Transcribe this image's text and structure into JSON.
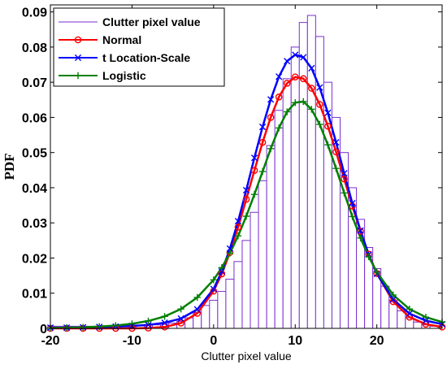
{
  "chart_data": {
    "type": "line",
    "xlabel": "Clutter pixel value",
    "ylabel": "PDF",
    "xlim": [
      -20,
      28
    ],
    "ylim": [
      0,
      0.092
    ],
    "x_ticks": [
      -20,
      -10,
      0,
      10,
      20
    ],
    "y_ticks": [
      0,
      0.01,
      0.02,
      0.03,
      0.04,
      0.05,
      0.06,
      0.07,
      0.08,
      0.09
    ],
    "grid": false,
    "legend_position": "top-left",
    "legend": [
      "Clutter pixel value",
      "Normal",
      "t Location-Scale",
      "Logistic"
    ],
    "histogram": {
      "name": "Clutter pixel value",
      "color": "#7a2fd0",
      "bin_width": 1,
      "bin_centers": [
        -20,
        -19,
        -18,
        -17,
        -16,
        -15,
        -14,
        -13,
        -12,
        -11,
        -10,
        -9,
        -8,
        -7,
        -6,
        -5,
        -4,
        -3,
        -2,
        -1,
        0,
        1,
        2,
        3,
        4,
        5,
        6,
        7,
        8,
        9,
        10,
        11,
        12,
        13,
        14,
        15,
        16,
        17,
        18,
        19,
        20,
        21,
        22,
        23,
        24,
        25,
        26,
        27
      ],
      "values": [
        0.0006,
        0.0006,
        0.0006,
        0.0006,
        0.0006,
        0.0006,
        0.0006,
        0.0006,
        0.0006,
        0.0007,
        0.0007,
        0.0008,
        0.0009,
        0.001,
        0.0012,
        0.0015,
        0.002,
        0.003,
        0.0045,
        0.0065,
        0.008,
        0.0105,
        0.014,
        0.019,
        0.025,
        0.033,
        0.042,
        0.052,
        0.062,
        0.071,
        0.08,
        0.087,
        0.089,
        0.083,
        0.07,
        0.06,
        0.05,
        0.04,
        0.031,
        0.023,
        0.017,
        0.012,
        0.008,
        0.005,
        0.003,
        0.0018,
        0.001,
        0.0006
      ]
    },
    "series": [
      {
        "name": "Normal",
        "color": "#ff0000",
        "marker": "circle",
        "x": [
          -20,
          -18,
          -16,
          -14,
          -12,
          -10,
          -8,
          -6,
          -4,
          -2,
          0,
          1,
          2,
          3,
          4,
          5,
          6,
          7,
          8,
          9,
          10,
          11,
          12,
          13,
          14,
          15,
          16,
          17,
          18,
          19,
          20,
          22,
          24,
          26,
          28
        ],
        "y": [
          0.0,
          0.0,
          0.0,
          0.0,
          0.0,
          0.0,
          0.0001,
          0.0004,
          0.0015,
          0.0043,
          0.0106,
          0.0155,
          0.0216,
          0.0288,
          0.0367,
          0.0449,
          0.0529,
          0.06,
          0.0658,
          0.0697,
          0.0715,
          0.071,
          0.0683,
          0.0637,
          0.0575,
          0.0502,
          0.0425,
          0.0348,
          0.0276,
          0.0211,
          0.0156,
          0.0076,
          0.0032,
          0.0012,
          0.0004
        ]
      },
      {
        "name": "t Location-Scale",
        "color": "#0000ff",
        "marker": "x",
        "x": [
          -20,
          -18,
          -16,
          -14,
          -12,
          -10,
          -8,
          -6,
          -4,
          -2,
          0,
          1,
          2,
          3,
          4,
          5,
          6,
          7,
          8,
          9,
          10,
          11,
          12,
          13,
          14,
          15,
          16,
          17,
          18,
          19,
          20,
          22,
          24,
          26,
          28
        ],
        "y": [
          0.0002,
          0.0002,
          0.0003,
          0.0004,
          0.0005,
          0.0007,
          0.001,
          0.0016,
          0.0028,
          0.0054,
          0.0112,
          0.0162,
          0.0227,
          0.0305,
          0.0393,
          0.0485,
          0.0573,
          0.0651,
          0.0716,
          0.076,
          0.0778,
          0.0771,
          0.074,
          0.0685,
          0.0613,
          0.0529,
          0.0441,
          0.0356,
          0.0278,
          0.021,
          0.0155,
          0.0082,
          0.0042,
          0.0022,
          0.0012
        ]
      },
      {
        "name": "Logistic",
        "color": "#008000",
        "marker": "plus",
        "x": [
          -20,
          -18,
          -16,
          -14,
          -12,
          -10,
          -8,
          -6,
          -4,
          -2,
          0,
          1,
          2,
          3,
          4,
          5,
          6,
          7,
          8,
          9,
          10,
          11,
          12,
          13,
          14,
          15,
          16,
          17,
          18,
          19,
          20,
          22,
          24,
          26,
          28
        ],
        "y": [
          0.0001,
          0.0002,
          0.0003,
          0.0005,
          0.0008,
          0.0013,
          0.0021,
          0.0034,
          0.0055,
          0.0088,
          0.0138,
          0.0173,
          0.0214,
          0.0263,
          0.0319,
          0.0381,
          0.0446,
          0.0511,
          0.057,
          0.0616,
          0.0642,
          0.0645,
          0.0623,
          0.058,
          0.0522,
          0.0455,
          0.0385,
          0.0318,
          0.0257,
          0.0204,
          0.016,
          0.0095,
          0.0055,
          0.0032,
          0.0018
        ]
      }
    ]
  }
}
